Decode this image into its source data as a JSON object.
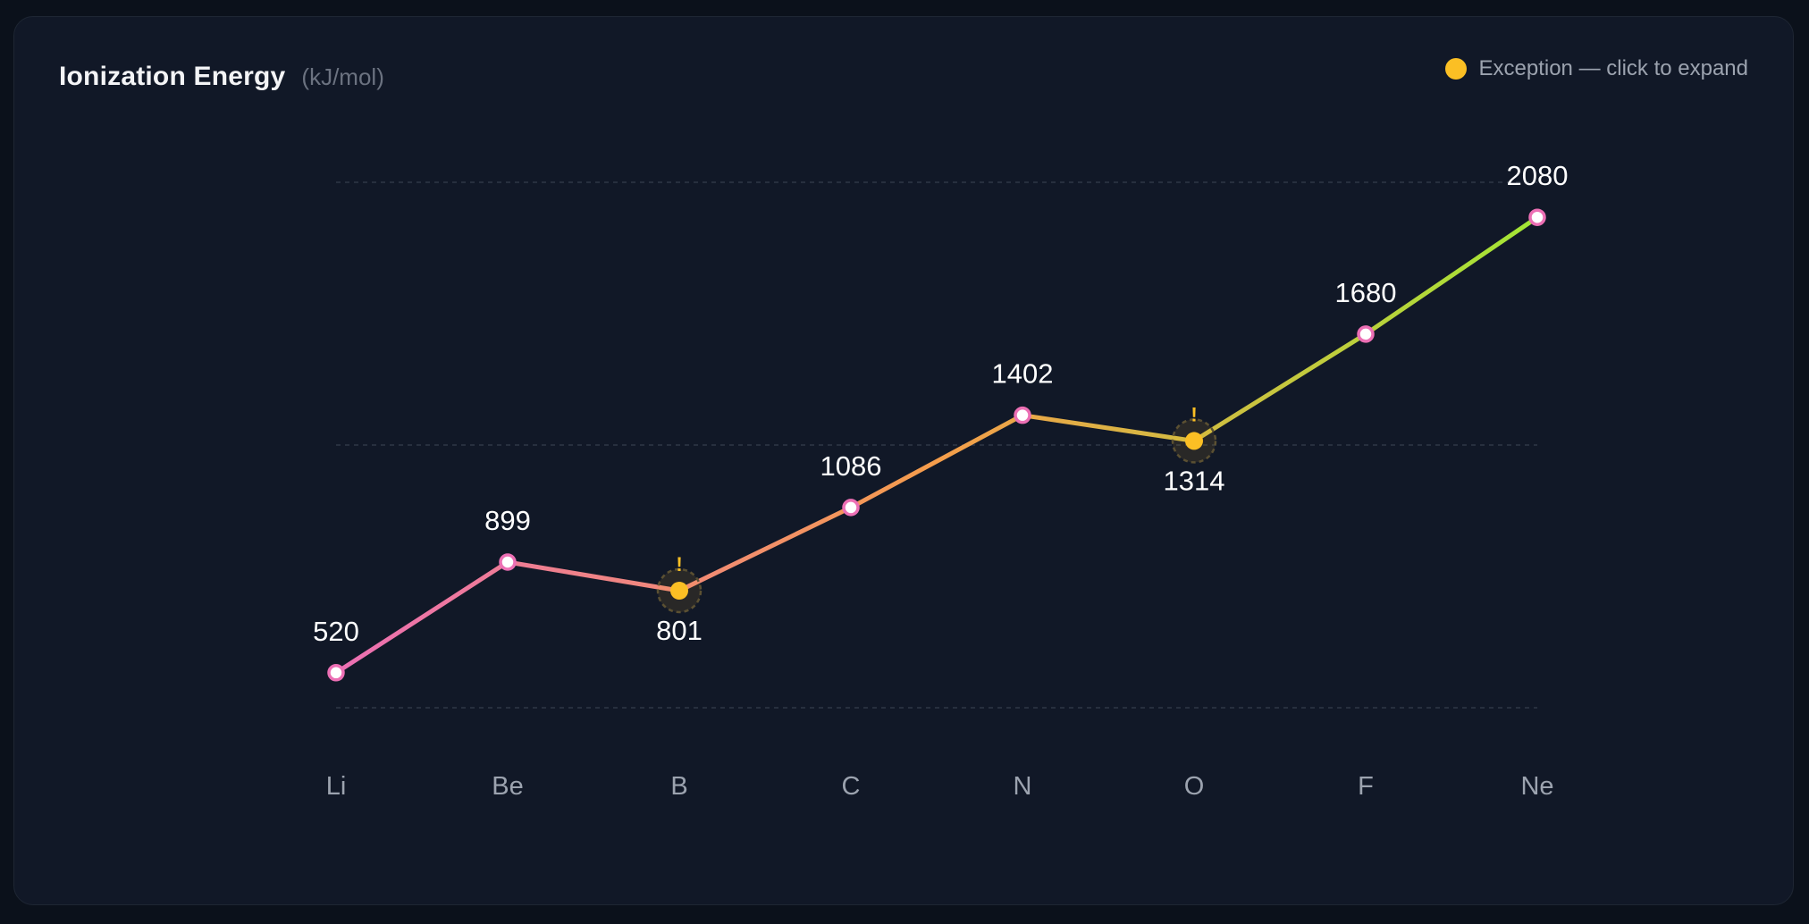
{
  "header": {
    "title": "Ionization Energy",
    "unit": "(kJ/mol)"
  },
  "legend": {
    "label": "Exception — click to expand",
    "color": "#fbbf24"
  },
  "colors": {
    "gradient_start": "#ec6fb4",
    "gradient_mid": "#f59d4b",
    "gradient_end": "#a3e635",
    "normal_point_stroke": "#ec6fb4",
    "exception_point": "#fbbf24"
  },
  "chart_data": {
    "type": "line",
    "categories": [
      "Li",
      "Be",
      "B",
      "C",
      "N",
      "O",
      "F",
      "Ne"
    ],
    "values": [
      520,
      899,
      801,
      1086,
      1402,
      1314,
      1680,
      2080
    ],
    "exceptions": [
      "B",
      "O"
    ],
    "exception_marker": "!",
    "ylim": [
      400,
      2200
    ],
    "gridlines": [
      400,
      1300,
      2200
    ],
    "grid": true,
    "legend_position": "top-right"
  }
}
